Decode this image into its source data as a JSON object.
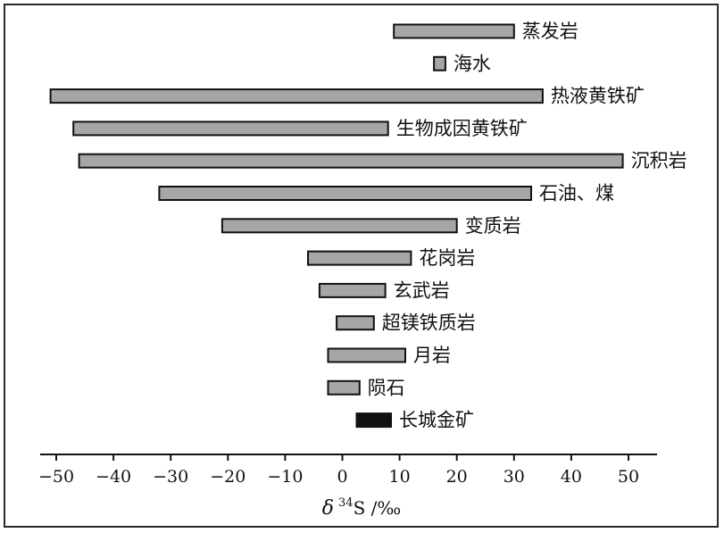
{
  "chart_data": {
    "type": "bar",
    "orientation": "horizontal-range",
    "xlabel": "δ ³⁴S /‰",
    "xlabel_parts": {
      "symbol": "δ",
      "superscript": "34",
      "rest": "S /‰"
    },
    "xlim": [
      -55,
      55
    ],
    "xticks": [
      -50,
      -40,
      -30,
      -20,
      -10,
      0,
      10,
      20,
      30,
      40,
      50
    ],
    "xtick_labels": [
      "−50",
      "−40",
      "−30",
      "−20",
      "−10",
      "0",
      "10",
      "20",
      "30",
      "40",
      "50"
    ],
    "grid": false,
    "categories": [
      "蒸发岩",
      "海水",
      "热液黄铁矿",
      "生物成因黄铁矿",
      "沉积岩",
      "石油、煤",
      "变质岩",
      "花岗岩",
      "玄武岩",
      "超镁铁质岩",
      "月岩",
      "陨石",
      "长城金矿"
    ],
    "ranges": [
      {
        "label": "蒸发岩",
        "min": 9,
        "max": 30,
        "color": "#a6a6a6"
      },
      {
        "label": "海水",
        "min": 16,
        "max": 18,
        "color": "#a6a6a6"
      },
      {
        "label": "热液黄铁矿",
        "min": -51,
        "max": 35,
        "color": "#a6a6a6"
      },
      {
        "label": "生物成因黄铁矿",
        "min": -47,
        "max": 8,
        "color": "#a6a6a6"
      },
      {
        "label": "沉积岩",
        "min": -46,
        "max": 49,
        "color": "#a6a6a6"
      },
      {
        "label": "石油、煤",
        "min": -32,
        "max": 33,
        "color": "#a6a6a6"
      },
      {
        "label": "变质岩",
        "min": -21,
        "max": 20,
        "color": "#a6a6a6"
      },
      {
        "label": "花岗岩",
        "min": -6,
        "max": 12,
        "color": "#a6a6a6"
      },
      {
        "label": "玄武岩",
        "min": -4,
        "max": 7.5,
        "color": "#a6a6a6"
      },
      {
        "label": "超镁铁质岩",
        "min": -1,
        "max": 5.5,
        "color": "#a6a6a6"
      },
      {
        "label": "月岩",
        "min": -2.5,
        "max": 11,
        "color": "#a6a6a6"
      },
      {
        "label": "陨石",
        "min": -2.5,
        "max": 3,
        "color": "#a6a6a6"
      },
      {
        "label": "长城金矿",
        "min": 2.5,
        "max": 8.5,
        "color": "#111111"
      }
    ]
  }
}
